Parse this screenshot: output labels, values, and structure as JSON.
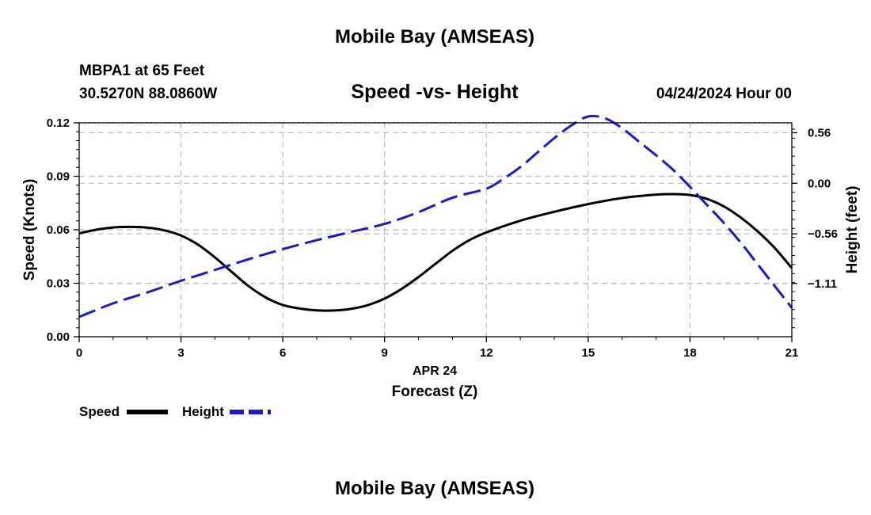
{
  "header": {
    "title": "Mobile Bay (AMSEAS)",
    "station": "MBPA1 at 65 Feet",
    "coords": "30.5270N  88.0860W",
    "subtitle": "Speed -vs- Height",
    "datetime": "04/24/2024 Hour 00"
  },
  "footer": {
    "title": "Mobile Bay (AMSEAS)"
  },
  "colors": {
    "speed": "#000000",
    "height": "#1a1acc",
    "grid": "#bdbdbd"
  },
  "chart_data": {
    "type": "line",
    "title": "Speed -vs- Height",
    "xlabel": "Forecast (Z)",
    "xlabel_date": "APR 24",
    "ylabel": "Speed (Knots)",
    "y2label": "Height (feet)",
    "xlim": [
      0,
      21
    ],
    "ylim": [
      0,
      0.12
    ],
    "y2lim": [
      -1.7,
      0.67
    ],
    "x_ticks": [
      0,
      3,
      6,
      9,
      12,
      15,
      18,
      21
    ],
    "x_tick_labels": [
      "0",
      "3",
      "6",
      "9",
      "12",
      "15",
      "18",
      "21"
    ],
    "y_ticks": [
      0,
      0.03,
      0.06,
      0.09,
      0.12
    ],
    "y_tick_labels": [
      "0.00",
      "0.03",
      "0.06",
      "0.09",
      "0.12"
    ],
    "y2_ticks": [
      0.56,
      0.0,
      -0.56,
      -1.11
    ],
    "y2_tick_labels": [
      "0.56",
      "0.00",
      "−0.56",
      "−1.11"
    ],
    "grid": true,
    "legend_position": "bottom-left",
    "series": [
      {
        "name": "Speed",
        "axis": "left",
        "style": "solid",
        "x": [
          0,
          0.5,
          1,
          1.5,
          2,
          2.5,
          3,
          3.5,
          4,
          4.5,
          5,
          5.5,
          6,
          6.5,
          7,
          7.5,
          8,
          8.5,
          9,
          9.5,
          10,
          10.5,
          11,
          11.5,
          12,
          13,
          14,
          15,
          16,
          17,
          17.5,
          18,
          18.5,
          19,
          19.5,
          20,
          20.5,
          21
        ],
        "values": [
          0.058,
          0.06,
          0.0613,
          0.0616,
          0.0612,
          0.0597,
          0.0568,
          0.0517,
          0.0445,
          0.0363,
          0.0283,
          0.022,
          0.0178,
          0.0158,
          0.0148,
          0.0147,
          0.0156,
          0.0177,
          0.0214,
          0.0268,
          0.0335,
          0.0409,
          0.0482,
          0.0542,
          0.0585,
          0.0651,
          0.0701,
          0.0744,
          0.0778,
          0.0797,
          0.08,
          0.0795,
          0.0773,
          0.0731,
          0.0668,
          0.059,
          0.0497,
          0.0385
        ]
      },
      {
        "name": "Height",
        "axis": "right",
        "style": "dashed",
        "x": [
          0,
          1,
          2,
          3,
          4,
          5,
          6,
          7,
          8,
          9,
          10,
          11,
          12,
          12.5,
          13,
          13.5,
          14,
          14.5,
          15,
          15.5,
          16,
          16.5,
          17,
          17.5,
          18,
          18.5,
          19,
          19.5,
          20,
          20.5,
          21
        ],
        "values": [
          -1.48,
          -1.33,
          -1.21,
          -1.08,
          -0.96,
          -0.84,
          -0.73,
          -0.63,
          -0.54,
          -0.45,
          -0.32,
          -0.16,
          -0.06,
          0.05,
          0.18,
          0.34,
          0.5,
          0.64,
          0.74,
          0.72,
          0.61,
          0.46,
          0.31,
          0.15,
          -0.04,
          -0.24,
          -0.44,
          -0.66,
          -0.9,
          -1.14,
          -1.38
        ]
      }
    ]
  }
}
